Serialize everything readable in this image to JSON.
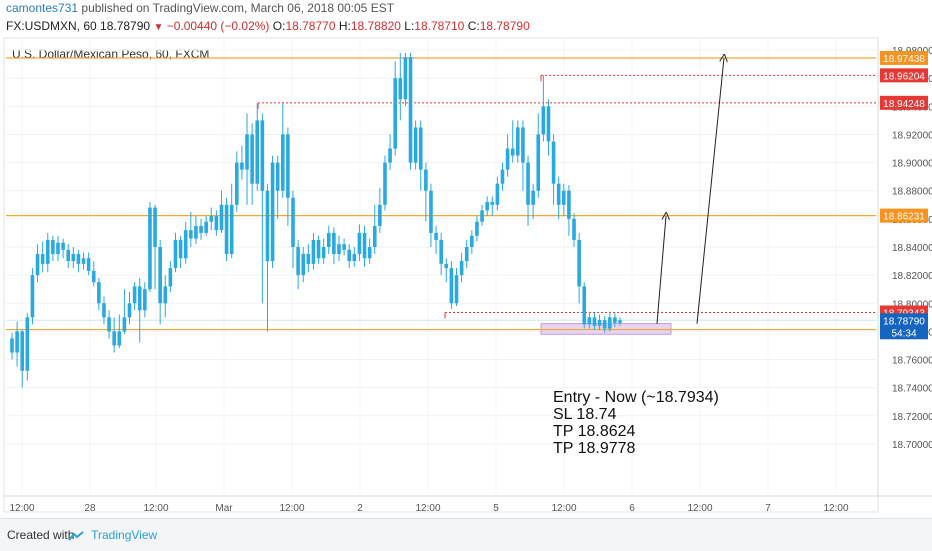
{
  "header": {
    "author": "camontes731",
    "published_text": "published on TradingView.com, March 06, 2018 00:05 EST",
    "symbol_line": "FX:USDMXN, 60",
    "last": "18.78790",
    "change": "−0.00440 (−0.02%)",
    "o_label": "O:",
    "o": "18.78770",
    "h_label": "H:",
    "h": "18.78820",
    "l_label": "L:",
    "l": "18.78710",
    "c_label": "C:",
    "c": "18.78790"
  },
  "chart_title": "U.S. Dollar/Mexican Peso, 60, FXCM",
  "footer": {
    "created": "Created with",
    "brand": "TradingView"
  },
  "colors": {
    "candle": "#29a9e1",
    "horizontal_line": "#f0a830",
    "dotted_line": "#e53935",
    "badge_orange": "#f7931e",
    "badge_red": "#e53935",
    "badge_price": "#1565c0",
    "zone": "#e8d4f0"
  },
  "chart_data": {
    "type": "candlestick",
    "ylim": [
      18.69,
      18.99
    ],
    "y_ticks": [
      "18.98000",
      "18.96000",
      "18.94000",
      "18.92000",
      "18.90000",
      "18.88000",
      "18.86000",
      "18.84000",
      "18.82000",
      "18.80000",
      "18.78000",
      "18.76000",
      "18.74000",
      "18.72000",
      "18.70000"
    ],
    "x_ticks": [
      "12:00",
      "28",
      "12:00",
      "Mar",
      "12:00",
      "2",
      "12:00",
      "5",
      "12:00",
      "6",
      "12:00",
      "7",
      "12:00"
    ],
    "horizontal_lines": [
      {
        "label": "18.97438",
        "value": 18.97438,
        "style": "solid",
        "badge": "orange"
      },
      {
        "label": "18.86231",
        "value": 18.86231,
        "style": "solid",
        "badge": "orange"
      },
      {
        "label": "18.78132",
        "value": 18.78132,
        "style": "solid",
        "badge": "orange"
      }
    ],
    "dotted_lines": [
      {
        "label": "18.96204",
        "value": 18.96204,
        "badge": "red"
      },
      {
        "label": "18.94248",
        "value": 18.94248,
        "badge": "red"
      },
      {
        "label": "18.79343",
        "value": 18.79343,
        "badge": "red"
      }
    ],
    "current_price": {
      "label": "18.78790",
      "value": 18.7879,
      "countdown": "54:34"
    },
    "entry_zone": {
      "low": 18.778,
      "high": 18.7855
    },
    "annotation_lines": [
      "Entry - Now (~18.7934)",
      "SL 18.74",
      "TP 18.8624",
      "TP 18.9778"
    ],
    "candles": [
      [
        18.775,
        18.765,
        18.779,
        18.76
      ],
      [
        18.765,
        18.78,
        18.787,
        18.755
      ],
      [
        18.78,
        18.752,
        18.781,
        18.74
      ],
      [
        18.752,
        18.79,
        18.793,
        18.745
      ],
      [
        18.79,
        18.82,
        18.825,
        18.785
      ],
      [
        18.82,
        18.835,
        18.842,
        18.815
      ],
      [
        18.835,
        18.828,
        18.844,
        18.822
      ],
      [
        18.828,
        18.845,
        18.85,
        18.822
      ],
      [
        18.845,
        18.835,
        18.848,
        18.83
      ],
      [
        18.835,
        18.843,
        18.848,
        18.83
      ],
      [
        18.843,
        18.838,
        18.846,
        18.832
      ],
      [
        18.838,
        18.83,
        18.842,
        18.825
      ],
      [
        18.83,
        18.835,
        18.84,
        18.825
      ],
      [
        18.835,
        18.828,
        18.838,
        18.822
      ],
      [
        18.828,
        18.832,
        18.836,
        18.824
      ],
      [
        18.832,
        18.823,
        18.836,
        18.82
      ],
      [
        18.823,
        18.815,
        18.83,
        18.812
      ],
      [
        18.815,
        18.8,
        18.818,
        18.795
      ],
      [
        18.8,
        18.79,
        18.805,
        18.785
      ],
      [
        18.79,
        18.78,
        18.795,
        18.775
      ],
      [
        18.78,
        18.77,
        18.79,
        18.765
      ],
      [
        18.77,
        18.78,
        18.792,
        18.768
      ],
      [
        18.78,
        18.79,
        18.81,
        18.778
      ],
      [
        18.79,
        18.8,
        18.808,
        18.785
      ],
      [
        18.8,
        18.812,
        18.815,
        18.795
      ],
      [
        18.812,
        18.795,
        18.818,
        18.772
      ],
      [
        18.795,
        18.81,
        18.815,
        18.79
      ],
      [
        18.81,
        18.868,
        18.872,
        18.808
      ],
      [
        18.868,
        18.84,
        18.87,
        18.81
      ],
      [
        18.84,
        18.8,
        18.845,
        18.785
      ],
      [
        18.8,
        18.812,
        18.82,
        18.79
      ],
      [
        18.812,
        18.825,
        18.83,
        18.808
      ],
      [
        18.825,
        18.845,
        18.85,
        18.822
      ],
      [
        18.845,
        18.832,
        18.848,
        18.825
      ],
      [
        18.832,
        18.852,
        18.858,
        18.828
      ],
      [
        18.852,
        18.846,
        18.865,
        18.84
      ],
      [
        18.846,
        18.855,
        18.862,
        18.842
      ],
      [
        18.855,
        18.85,
        18.86,
        18.845
      ],
      [
        18.85,
        18.858,
        18.862,
        18.848
      ],
      [
        18.858,
        18.862,
        18.868,
        18.852
      ],
      [
        18.862,
        18.852,
        18.866,
        18.848
      ],
      [
        18.852,
        18.87,
        18.88,
        18.85
      ],
      [
        18.87,
        18.835,
        18.875,
        18.83
      ],
      [
        18.835,
        18.87,
        18.885,
        18.832
      ],
      [
        18.87,
        18.9,
        18.908,
        18.865
      ],
      [
        18.9,
        18.895,
        18.912,
        18.888
      ],
      [
        18.895,
        18.92,
        18.935,
        18.87
      ],
      [
        18.92,
        18.885,
        18.928,
        18.87
      ],
      [
        18.885,
        18.93,
        18.942,
        18.88
      ],
      [
        18.93,
        18.88,
        18.935,
        18.8
      ],
      [
        18.88,
        18.83,
        18.885,
        18.78
      ],
      [
        18.83,
        18.9,
        18.905,
        18.825
      ],
      [
        18.9,
        18.88,
        18.905,
        18.86
      ],
      [
        18.88,
        18.92,
        18.942,
        18.875
      ],
      [
        18.92,
        18.875,
        18.925,
        18.855
      ],
      [
        18.875,
        18.84,
        18.88,
        18.825
      ],
      [
        18.84,
        18.82,
        18.845,
        18.81
      ],
      [
        18.82,
        18.835,
        18.84,
        18.815
      ],
      [
        18.835,
        18.828,
        18.842,
        18.822
      ],
      [
        18.828,
        18.845,
        18.85,
        18.824
      ],
      [
        18.845,
        18.832,
        18.848,
        18.828
      ],
      [
        18.832,
        18.84,
        18.846,
        18.828
      ],
      [
        18.84,
        18.85,
        18.855,
        18.835
      ],
      [
        18.85,
        18.835,
        18.854,
        18.828
      ],
      [
        18.835,
        18.842,
        18.848,
        18.83
      ],
      [
        18.842,
        18.838,
        18.846,
        18.834
      ],
      [
        18.838,
        18.83,
        18.842,
        18.825
      ],
      [
        18.83,
        18.835,
        18.84,
        18.826
      ],
      [
        18.835,
        18.85,
        18.856,
        18.83
      ],
      [
        18.85,
        18.832,
        18.855,
        18.826
      ],
      [
        18.832,
        18.84,
        18.846,
        18.828
      ],
      [
        18.84,
        18.855,
        18.87,
        18.835
      ],
      [
        18.855,
        18.87,
        18.882,
        18.85
      ],
      [
        18.87,
        18.9,
        18.905,
        18.866
      ],
      [
        18.9,
        18.91,
        18.92,
        18.895
      ],
      [
        18.91,
        18.96,
        18.972,
        18.905
      ],
      [
        18.96,
        18.945,
        18.978,
        18.93
      ],
      [
        18.945,
        18.975,
        18.978,
        18.94
      ],
      [
        18.975,
        18.9,
        18.978,
        18.895
      ],
      [
        18.9,
        18.925,
        18.93,
        18.895
      ],
      [
        18.925,
        18.895,
        18.93,
        18.88
      ],
      [
        18.895,
        18.88,
        18.9,
        18.858
      ],
      [
        18.88,
        18.85,
        18.885,
        18.84
      ],
      [
        18.85,
        18.845,
        18.855,
        18.835
      ],
      [
        18.845,
        18.828,
        18.85,
        18.82
      ],
      [
        18.828,
        18.825,
        18.832,
        18.815
      ],
      [
        18.825,
        18.8,
        18.83,
        18.796
      ],
      [
        18.8,
        18.82,
        18.825,
        18.798
      ],
      [
        18.82,
        18.83,
        18.836,
        18.815
      ],
      [
        18.83,
        18.84,
        18.845,
        18.825
      ],
      [
        18.84,
        18.848,
        18.852,
        18.835
      ],
      [
        18.848,
        18.858,
        18.862,
        18.844
      ],
      [
        18.858,
        18.866,
        18.87,
        18.855
      ],
      [
        18.866,
        18.872,
        18.876,
        18.862
      ],
      [
        18.872,
        18.87,
        18.876,
        18.862
      ],
      [
        18.87,
        18.885,
        18.89,
        18.866
      ],
      [
        18.885,
        18.895,
        18.9,
        18.88
      ],
      [
        18.895,
        18.91,
        18.92,
        18.89
      ],
      [
        18.91,
        18.905,
        18.93,
        18.9
      ],
      [
        18.905,
        18.925,
        18.93,
        18.9
      ],
      [
        18.925,
        18.9,
        18.93,
        18.88
      ],
      [
        18.9,
        18.87,
        18.905,
        18.855
      ],
      [
        18.87,
        18.88,
        18.885,
        18.86
      ],
      [
        18.88,
        18.92,
        18.935,
        18.875
      ],
      [
        18.92,
        18.94,
        18.962,
        18.915
      ],
      [
        18.94,
        18.915,
        18.945,
        18.905
      ],
      [
        18.915,
        18.885,
        18.92,
        18.87
      ],
      [
        18.885,
        18.87,
        18.89,
        18.86
      ],
      [
        18.87,
        18.88,
        18.885,
        18.862
      ],
      [
        18.88,
        18.86,
        18.884,
        18.848
      ],
      [
        18.86,
        18.845,
        18.864,
        18.84
      ],
      [
        18.845,
        18.812,
        18.85,
        18.8
      ],
      [
        18.812,
        18.785,
        18.815,
        18.782
      ],
      [
        18.785,
        18.79,
        18.794,
        18.782
      ],
      [
        18.79,
        18.784,
        18.793,
        18.781
      ],
      [
        18.784,
        18.788,
        18.792,
        18.781
      ],
      [
        18.788,
        18.782,
        18.791,
        18.779
      ],
      [
        18.782,
        18.79,
        18.794,
        18.78
      ],
      [
        18.79,
        18.786,
        18.793,
        18.783
      ],
      [
        18.786,
        18.7879,
        18.79,
        18.784
      ]
    ]
  }
}
